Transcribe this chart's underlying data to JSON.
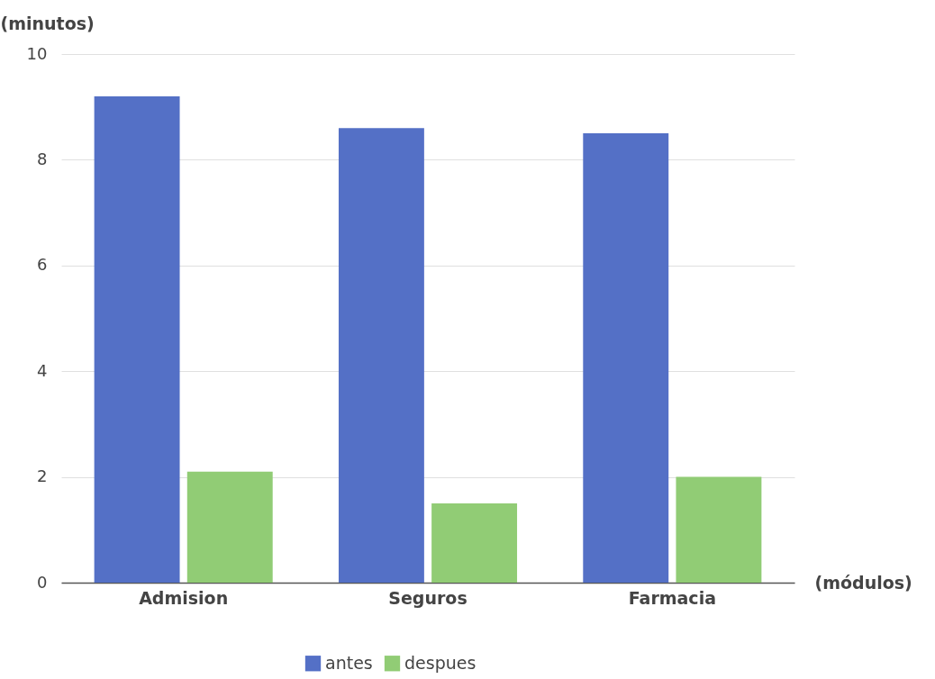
{
  "chart_data": {
    "type": "bar",
    "xlabel": "(módulos)",
    "ylabel": "(minutos)",
    "categories": [
      "Admision",
      "Seguros",
      "Farmacia"
    ],
    "series": [
      {
        "name": "antes",
        "color": "#5470c6",
        "values": [
          9.2,
          8.6,
          8.5
        ]
      },
      {
        "name": "despues",
        "color": "#91cc75",
        "values": [
          2.1,
          1.5,
          2.0
        ]
      }
    ],
    "ylim": [
      0,
      10
    ],
    "yticks": [
      0,
      2,
      4,
      6,
      8,
      10
    ],
    "grid": "y",
    "legend": "bottom"
  }
}
